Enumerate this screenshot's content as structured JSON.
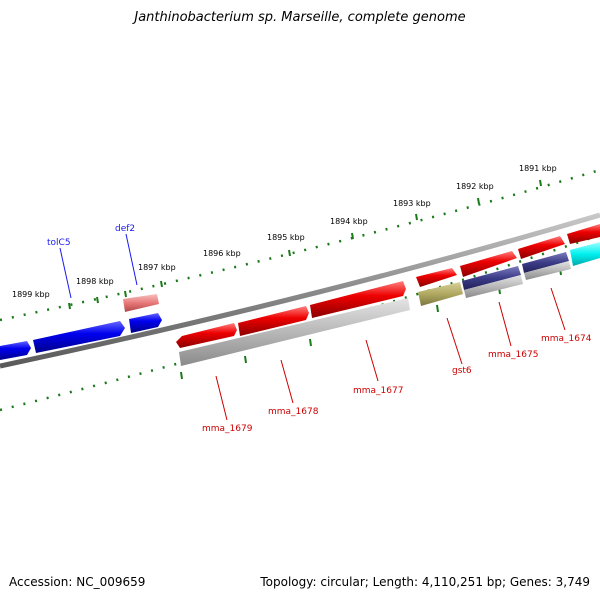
{
  "title": "Janthinobacterium sp. Marseille, complete genome",
  "footer": {
    "accession": "Accession: NC_009659",
    "summary": "Topology: circular; Length: 4,110,251 bp; Genes: 3,749"
  },
  "kbp_labels": [
    "1899 kbp",
    "1898 kbp",
    "1897 kbp",
    "1896 kbp",
    "1895 kbp",
    "1894 kbp",
    "1893 kbp",
    "1892 kbp",
    "1891 kbp"
  ],
  "gene_labels": {
    "tolC5": "tolC5",
    "def2": "def2",
    "mma_1679": "mma_1679",
    "mma_1678": "mma_1678",
    "mma_1677": "mma_1677",
    "gst6": "gst6",
    "mma_1675": "mma_1675",
    "mma_1674": "mma_1674"
  },
  "colors": {
    "blue_gene": "#0000ee",
    "red_gene": "#ee0000",
    "pink_gene": "#e87878",
    "grey_feature": "#b8b8b8",
    "olive_feature": "#b0a860",
    "navy_feature": "#3c3c88",
    "cyan_gene": "#00f0f0",
    "backbone": "#808080",
    "ticks": "#1a7a1a"
  }
}
